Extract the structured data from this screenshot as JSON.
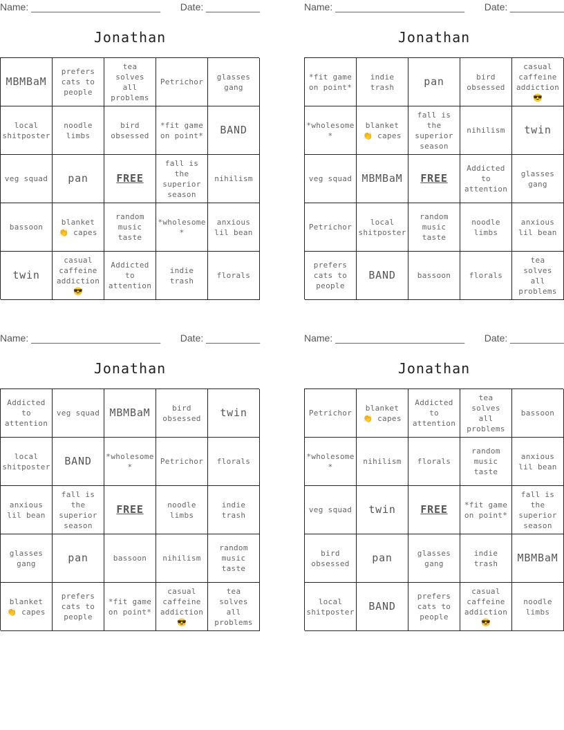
{
  "cards": [
    {
      "name_label": "Name: ________________________",
      "date_label": "Date: __________",
      "title": "Jonathan",
      "cells": [
        "MBMBaM",
        "prefers cats to people",
        "tea solves all problems",
        "Petrichor",
        "glasses gang",
        "local shitposter",
        "noodle limbs",
        "bird obsessed",
        "*fit game on point*",
        "BAND",
        "veg squad",
        "pan",
        "FREE",
        "fall is the superior season",
        "nihilism",
        "bassoon",
        "blanket 👏 capes",
        "random music taste",
        "*wholesome *",
        "anxious lil bean",
        "twin",
        "casual caffeine addiction 😎",
        "Addicted to attention",
        "indie trash",
        "florals"
      ]
    },
    {
      "name_label": "Name: ________________________",
      "date_label": "Date: __________",
      "title": "Jonathan",
      "cells": [
        "*fit game on point*",
        "indie trash",
        "pan",
        "bird obsessed",
        "casual caffeine addiction 😎",
        "*wholesome *",
        "blanket 👏 capes",
        "fall is the superior season",
        "nihilism",
        "twin",
        "veg squad",
        "MBMBaM",
        "FREE",
        "Addicted to attention",
        "glasses gang",
        "Petrichor",
        "local shitposter",
        "random music taste",
        "noodle limbs",
        "anxious lil bean",
        "prefers cats to people",
        "BAND",
        "bassoon",
        "florals",
        "tea solves all problems"
      ]
    },
    {
      "name_label": "Name: ________________________",
      "date_label": "Date: __________",
      "title": "Jonathan",
      "cells": [
        "Addicted to attention",
        "veg squad",
        "MBMBaM",
        "bird obsessed",
        "twin",
        "local shitposter",
        "BAND",
        "*wholesome *",
        "Petrichor",
        "florals",
        "anxious lil bean",
        "fall is the superior season",
        "FREE",
        "noodle limbs",
        "indie trash",
        "glasses gang",
        "pan",
        "bassoon",
        "nihilism",
        "random music taste",
        "blanket 👏 capes",
        "prefers cats to people",
        "*fit game on point*",
        "casual caffeine addiction 😎",
        "tea solves all problems"
      ]
    },
    {
      "name_label": "Name: ________________________",
      "date_label": "Date: __________",
      "title": "Jonathan",
      "cells": [
        "Petrichor",
        "blanket 👏 capes",
        "Addicted to attention",
        "tea solves all problems",
        "bassoon",
        "*wholesome *",
        "nihilism",
        "florals",
        "random music taste",
        "anxious lil bean",
        "veg squad",
        "twin",
        "FREE",
        "*fit game on point*",
        "fall is the superior season",
        "bird obsessed",
        "pan",
        "glasses gang",
        "indie trash",
        "MBMBaM",
        "local shitposter",
        "BAND",
        "prefers cats to people",
        "casual caffeine addiction 😎",
        "noodle limbs"
      ]
    }
  ]
}
